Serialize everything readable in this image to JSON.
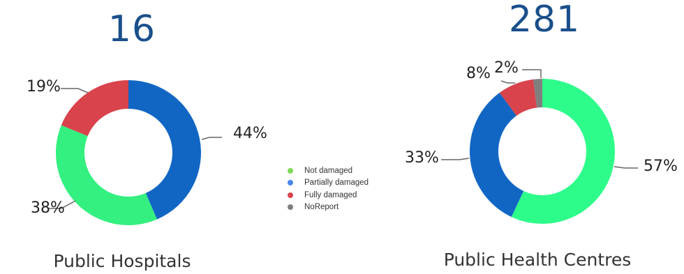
{
  "legend": [
    {
      "label": "Not damaged",
      "color": "#7ed957"
    },
    {
      "label": "Partially damaged",
      "color": "#4a86e8"
    },
    {
      "label": "Fully damaged",
      "color": "#d9434b"
    },
    {
      "label": "NoReport",
      "color": "#7f7f7f"
    }
  ],
  "chart_data": [
    {
      "type": "pie",
      "variant": "donut",
      "total": "16",
      "title": "Public Hospitals",
      "categories": [
        "Not damaged",
        "Partially damaged",
        "Fully damaged"
      ],
      "values": [
        38,
        44,
        19
      ],
      "labels": [
        "38%",
        "44%",
        "19%"
      ],
      "colors": [
        "#33f080",
        "#1166c4",
        "#d9434b"
      ]
    },
    {
      "type": "pie",
      "variant": "donut",
      "total": "281",
      "title": "Public Health Centres",
      "categories": [
        "Not damaged",
        "Partially damaged",
        "Fully damaged",
        "NoReport"
      ],
      "values": [
        57,
        33,
        8,
        2
      ],
      "labels": [
        "57%",
        "33%",
        "8%",
        "2%"
      ],
      "colors": [
        "#2efc8a",
        "#1166c4",
        "#d9434b",
        "#7f7f7f"
      ]
    }
  ]
}
